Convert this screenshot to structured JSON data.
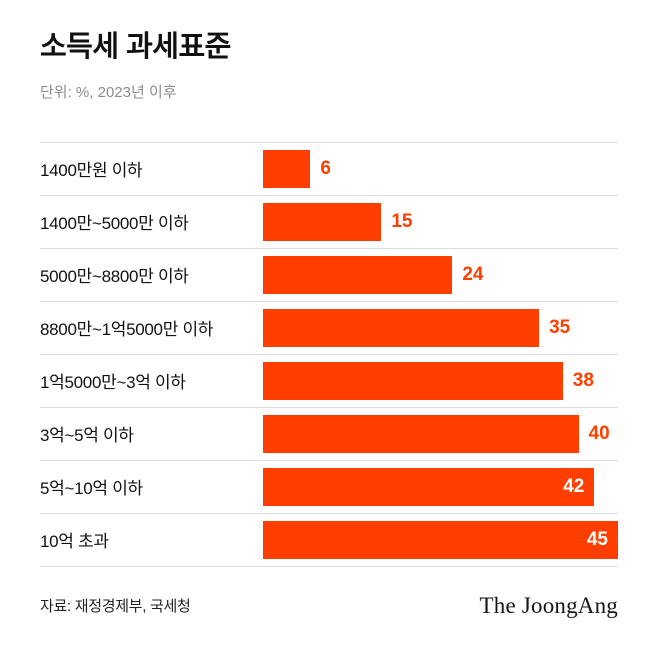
{
  "title": "소득세 과세표준",
  "subtitle": "단위: %, 2023년 이후",
  "footer": {
    "source": "자료: 재정경제부, 국세청",
    "logo": "The JoongAng"
  },
  "colors": {
    "bar": "#FF3E00",
    "value_outside": "#FF3E00",
    "value_inside": "#FFFFFF",
    "divider": "#DCDCDC"
  },
  "chart_data": {
    "type": "bar",
    "orientation": "horizontal",
    "title": "소득세 과세표준",
    "unit": "%",
    "categories": [
      "1400만원 이하",
      "1400만~5000만 이하",
      "5000만~8800만 이하",
      "8800만~1억5000만 이하",
      "1억5000만~3억 이하",
      "3억~5억 이하",
      "5억~10억 이하",
      "10억 초과"
    ],
    "values": [
      6,
      15,
      24,
      35,
      38,
      40,
      42,
      45
    ],
    "xlim": [
      0,
      45
    ],
    "label_inside": [
      false,
      false,
      false,
      false,
      false,
      false,
      true,
      true
    ],
    "grid": false,
    "legend": false
  }
}
